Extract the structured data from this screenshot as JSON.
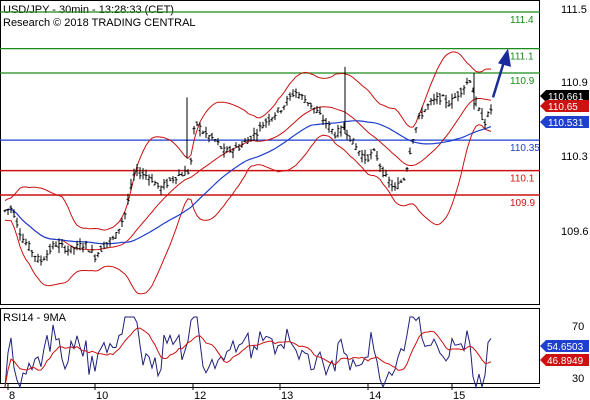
{
  "chart_data": [
    {
      "type": "candlestick",
      "header": {
        "line1": "USD/JPY - 30min - 13:28:33 (CET)",
        "line2": "Research © 2018 TRADING CENTRAL"
      },
      "y_ticks": [
        "111.5",
        "110.9",
        "110.3",
        "109.6"
      ],
      "x_ticks": [
        "8",
        "10",
        "12",
        "13",
        "14",
        "15"
      ],
      "levels": [
        {
          "value": 111.4,
          "label": "111.4",
          "color": "#1a8a1a"
        },
        {
          "value": 111.1,
          "label": "111.1",
          "color": "#1a8a1a"
        },
        {
          "value": 110.9,
          "label": "110.9",
          "color": "#1a8a1a"
        },
        {
          "value": 110.35,
          "label": "110.35",
          "color": "#1f3fcf"
        },
        {
          "value": 110.1,
          "label": "110.1",
          "color": "#cc1111"
        },
        {
          "value": 109.9,
          "label": "109.9",
          "color": "#cc1111"
        }
      ],
      "price_tags": [
        {
          "value": 110.661,
          "label": "110.661",
          "bg": "#000000",
          "fg": "#ffffff"
        },
        {
          "value": 110.65,
          "label": "110.65",
          "bg": "#cc1111",
          "fg": "#ffffff"
        },
        {
          "value": 110.531,
          "label": "110.531",
          "bg": "#1f3fcf",
          "fg": "#ffffff"
        }
      ],
      "y_range": [
        109.2,
        111.6
      ],
      "arrow_color": "#1a2a9a"
    },
    {
      "type": "line",
      "title": "RSI14 - 9MA",
      "y_ticks": [
        "70",
        "30"
      ],
      "y_range": [
        20,
        80
      ],
      "tags": [
        {
          "value": 54.6503,
          "label": "54.6503",
          "bg": "#1f3fcf",
          "fg": "#ffffff"
        },
        {
          "value": 46.8949,
          "label": "46.8949",
          "bg": "#cc1111",
          "fg": "#ffffff"
        }
      ]
    }
  ]
}
